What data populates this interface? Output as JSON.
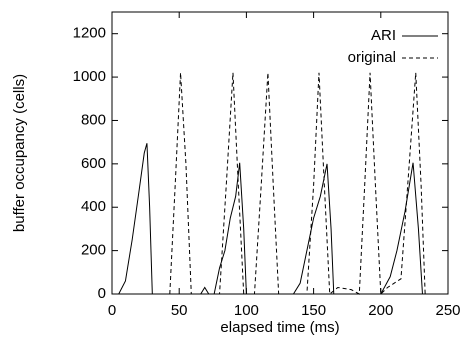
{
  "chart_data": {
    "type": "line",
    "x_label": "elapsed time (ms)",
    "y_label": "buffer occupancy (cells)",
    "xlim": [
      0,
      250
    ],
    "xticks": [
      0,
      50,
      100,
      150,
      200,
      250
    ],
    "ylim": [
      0,
      1300
    ],
    "yticks": [
      0,
      200,
      400,
      600,
      800,
      1000,
      1200
    ],
    "legend": "top-right",
    "series": [
      {
        "name": "ARI",
        "color": "#000000",
        "dash": "solid",
        "x": [
          5,
          10,
          15,
          20,
          24,
          26,
          28,
          30,
          66,
          69,
          72,
          76,
          80,
          84,
          88,
          92,
          95,
          98,
          100,
          135,
          140,
          145,
          150,
          155,
          160,
          163,
          165,
          200,
          207,
          212,
          218,
          224,
          228,
          231
        ],
        "values": [
          0,
          60,
          250,
          470,
          650,
          695,
          400,
          0,
          0,
          30,
          0,
          0,
          120,
          200,
          350,
          450,
          605,
          300,
          0,
          0,
          50,
          200,
          350,
          450,
          600,
          300,
          0,
          0,
          80,
          200,
          380,
          605,
          300,
          0
        ]
      },
      {
        "name": "original",
        "color": "#000000",
        "dash": "dashed",
        "x": [
          43,
          47,
          51,
          55,
          59,
          80,
          85,
          90,
          94,
          98,
          106,
          111,
          116,
          120,
          124,
          145,
          150,
          154,
          158,
          162,
          168,
          178,
          184,
          188,
          192,
          196,
          200,
          205,
          215,
          220,
          226,
          230,
          233
        ],
        "values": [
          0,
          500,
          1020,
          600,
          0,
          0,
          500,
          1020,
          500,
          0,
          0,
          500,
          1020,
          500,
          0,
          0,
          500,
          1020,
          500,
          0,
          30,
          20,
          0,
          500,
          1020,
          500,
          0,
          30,
          70,
          500,
          1020,
          500,
          0
        ]
      }
    ]
  }
}
